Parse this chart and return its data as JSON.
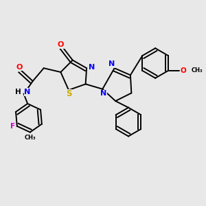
{
  "bg_color": "#e8e8e8",
  "atom_colors": {
    "O": "#ff0000",
    "N": "#0000ff",
    "S": "#ccaa00",
    "F": "#cc00cc",
    "C": "#000000",
    "H": "#000000"
  },
  "bond_color": "#000000",
  "bond_lw": 1.4
}
